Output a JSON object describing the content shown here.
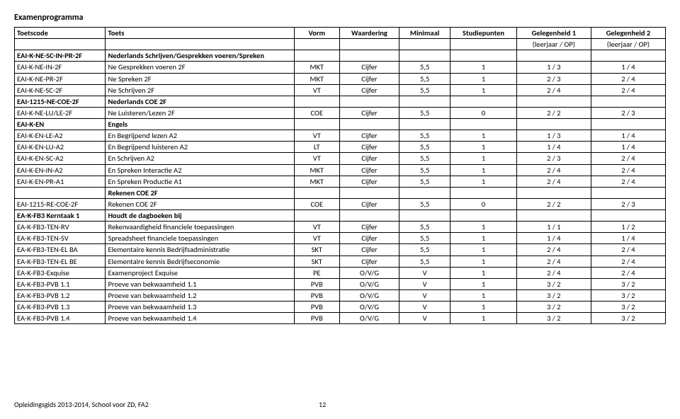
{
  "page": {
    "title": "Examenprogramma",
    "footer_left": "Opleidingsgids 2013-2014, School voor ZD, FA2",
    "footer_page": "12"
  },
  "headers": {
    "toetscode": "Toetscode",
    "toets": "Toets",
    "vorm": "Vorm",
    "waardering": "Waardering",
    "minimaal": "Minimaal",
    "studiepunten": "Studiepunten",
    "gel1": "Gelegenheid 1",
    "gel2": "Gelegenheid 2",
    "gel1_sub": "(leerjaar / OP)",
    "gel2_sub": "(leerjaar / OP)"
  },
  "rows": [
    {
      "bold": true,
      "code": "EAI-K-NE-SC-IN-PR-2F",
      "toets": "Nederlands Schrijven/Gesprekken voeren/Spreken",
      "vorm": "",
      "waard": "",
      "min": "",
      "stud": "",
      "g1": "",
      "g2": ""
    },
    {
      "code": "EAI-K-NE-IN-2F",
      "toets": "Ne Gesprekken voeren 2F",
      "vorm": "MKT",
      "waard": "Cijfer",
      "min": "5,5",
      "stud": "1",
      "g1": "1 / 3",
      "g2": "1 / 4"
    },
    {
      "code": "EAI-K-NE-PR-2F",
      "toets": "Ne Spreken 2F",
      "vorm": "MKT",
      "waard": "Cijfer",
      "min": "5,5",
      "stud": "1",
      "g1": "2 / 3",
      "g2": "2 / 4"
    },
    {
      "code": "EAI-K-NE-SC-2F",
      "toets": "Ne Schrijven 2F",
      "vorm": "VT",
      "waard": "Cijfer",
      "min": "5,5",
      "stud": "1",
      "g1": "2 / 4",
      "g2": "2 / 4"
    },
    {
      "bold": true,
      "code": "EAI-1215-NE-COE-2F",
      "toets": "Nederlands COE 2F",
      "vorm": "",
      "waard": "",
      "min": "",
      "stud": "",
      "g1": "",
      "g2": ""
    },
    {
      "code": "EAI-K-NE-LU/LE-2F",
      "toets": "Ne Luisteren/Lezen 2F",
      "vorm": "COE",
      "waard": "Cijfer",
      "min": "5,5",
      "stud": "0",
      "g1": "2 / 2",
      "g2": "2 / 3"
    },
    {
      "bold": true,
      "code": "EAI-K-EN",
      "toets": "Engels",
      "vorm": "",
      "waard": "",
      "min": "",
      "stud": "",
      "g1": "",
      "g2": ""
    },
    {
      "code": "EAI-K-EN-LE-A2",
      "toets": "En Begrijpend lezen A2",
      "vorm": "VT",
      "waard": "Cijfer",
      "min": "5,5",
      "stud": "1",
      "g1": "1 / 3",
      "g2": "1 / 4"
    },
    {
      "code": "EAI-K-EN-LU-A2",
      "toets": "En Begrijpend luisteren A2",
      "vorm": "LT",
      "waard": "Cijfer",
      "min": "5,5",
      "stud": "1",
      "g1": "1 / 4",
      "g2": "1 / 4"
    },
    {
      "code": "EAI-K-EN-SC-A2",
      "toets": "En Schrijven A2",
      "vorm": "VT",
      "waard": "Cijfer",
      "min": "5,5",
      "stud": "1",
      "g1": "2 / 3",
      "g2": "2 / 4"
    },
    {
      "code": "EAI-K-EN-IN-A2",
      "toets": "En Spreken Interactie A2",
      "vorm": "MKT",
      "waard": "Cijfer",
      "min": "5,5",
      "stud": "1",
      "g1": "2 / 4",
      "g2": "2 / 4"
    },
    {
      "code": "EAI-K-EN-PR-A1",
      "toets": "En Spreken Productie A1",
      "vorm": "MKT",
      "waard": "Cijfer",
      "min": "5,5",
      "stud": "1",
      "g1": "2 / 4",
      "g2": "2 / 4"
    },
    {
      "bold": true,
      "code": "",
      "toets": "Rekenen COE 2F",
      "vorm": "",
      "waard": "",
      "min": "",
      "stud": "",
      "g1": "",
      "g2": ""
    },
    {
      "code": "EAI-1215-RE-COE-2F",
      "toets": "Rekenen COE 2F",
      "vorm": "COE",
      "waard": "Cijfer",
      "min": "5,5",
      "stud": "0",
      "g1": "2 / 2",
      "g2": "2 / 3"
    },
    {
      "bold": true,
      "code": "EA-K-FB3 Kerntaak 1",
      "toets": "Houdt de dagboeken bij",
      "vorm": "",
      "waard": "",
      "min": "",
      "stud": "",
      "g1": "",
      "g2": ""
    },
    {
      "code": "EA-K-FB3-TEN-RV",
      "toets": "Rekenvaardigheid financiele toepassingen",
      "vorm": "VT",
      "waard": "Cijfer",
      "min": "5,5",
      "stud": "1",
      "g1": "1 / 1",
      "g2": "1 / 2"
    },
    {
      "code": "EA-K-FB3-TEN-SV",
      "toets": "Spreadsheet financiele toepassingen",
      "vorm": "VT",
      "waard": "Cijfer",
      "min": "5,5",
      "stud": "1",
      "g1": "1 / 4",
      "g2": "1 / 4"
    },
    {
      "code": "EA-K-FB3-TEN-EL BA",
      "toets": "Elementaire kennis Bedrijfsadministratie",
      "vorm": "SKT",
      "waard": "Cijfer",
      "min": "5,5",
      "stud": "1",
      "g1": "2 / 4",
      "g2": "2 / 4"
    },
    {
      "code": "EA-K-FB3-TEN-EL BE",
      "toets": "Elementaire kennis Bedrijfseconomie",
      "vorm": "SKT",
      "waard": "Cijfer",
      "min": "5,5",
      "stud": "1",
      "g1": "2 / 4",
      "g2": "2 / 4"
    },
    {
      "code": "EA-K-FB3-Exquise",
      "toets": "Examenproject Exquise",
      "vorm": "PE",
      "waard": "O/V/G",
      "min": "V",
      "stud": "1",
      "g1": "2 / 4",
      "g2": "2 / 4"
    },
    {
      "code": "EA-K-FB3-PVB 1.1",
      "toets": "Proeve van bekwaamheid 1.1",
      "vorm": "PVB",
      "waard": "O/V/G",
      "min": "V",
      "stud": "1",
      "g1": "3 / 2",
      "g2": "3 / 2"
    },
    {
      "code": "EA-K-FB3-PVB 1.2",
      "toets": "Proeve van bekwaamheid 1.2",
      "vorm": "PVB",
      "waard": "O/V/G",
      "min": "V",
      "stud": "1",
      "g1": "3 / 2",
      "g2": "3 / 2"
    },
    {
      "code": "EA-K-FB3-PVB 1.3",
      "toets": "Proeve van bekwaamheid 1.3",
      "vorm": "PVB",
      "waard": "O/V/G",
      "min": "V",
      "stud": "1",
      "g1": "3 / 2",
      "g2": "3 / 2"
    },
    {
      "code": "EA-K-FB3-PVB 1.4",
      "toets": "Proeve van bekwaamheid 1.4",
      "vorm": "PVB",
      "waard": "O/V/G",
      "min": "V",
      "stud": "1",
      "g1": "3 / 2",
      "g2": "3 / 2"
    }
  ]
}
